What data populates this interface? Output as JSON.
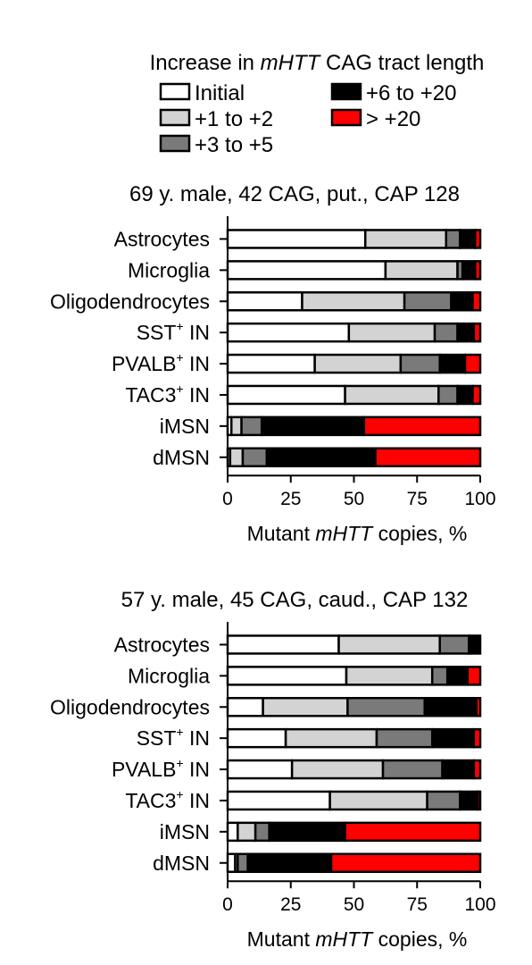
{
  "legend": {
    "title_pre": "Increase in ",
    "title_gene": "mHTT",
    "title_post": " CAG tract length",
    "items": [
      {
        "label": "Initial",
        "color": "#ffffff"
      },
      {
        "label": "+6 to +20",
        "color": "#000000"
      },
      {
        "label": "+1 to +2",
        "color": "#d3d3d3"
      },
      {
        "label": "> +20",
        "color": "#ff0000"
      },
      {
        "label": "+3 to +5",
        "color": "#7a7a7a"
      }
    ]
  },
  "chart_data": [
    {
      "type": "bar",
      "orientation": "horizontal",
      "stacked": true,
      "title": "69 y. male, 42 CAG, put., CAP 128",
      "xlabel_pre": "Mutant ",
      "xlabel_gene": "mHTT",
      "xlabel_post": " copies, %",
      "xlim": [
        0,
        100
      ],
      "xticks": [
        "0",
        "25",
        "50",
        "75",
        "100"
      ],
      "categories": [
        {
          "name": "Astrocytes",
          "sup": ""
        },
        {
          "name": "Microglia",
          "sup": ""
        },
        {
          "name": "Oligodendrocytes",
          "sup": ""
        },
        {
          "name": "SST",
          "sup": "+",
          "suffix": " IN"
        },
        {
          "name": "PVALB",
          "sup": "+",
          "suffix": " IN"
        },
        {
          "name": "TAC3",
          "sup": "+",
          "suffix": " IN"
        },
        {
          "name": "iMSN",
          "sup": ""
        },
        {
          "name": "dMSN",
          "sup": ""
        }
      ],
      "series": [
        {
          "name": "Initial",
          "color": "#ffffff",
          "values": [
            54.5,
            62.5,
            29.5,
            48,
            34.5,
            46.5,
            1.5,
            1
          ]
        },
        {
          "name": "+1 to +2",
          "color": "#d3d3d3",
          "values": [
            32,
            28.5,
            40.5,
            34,
            34,
            37,
            4,
            5
          ]
        },
        {
          "name": "+3 to +5",
          "color": "#7a7a7a",
          "values": [
            5.5,
            2,
            18.5,
            9,
            15.5,
            7.5,
            8,
            9.5
          ]
        },
        {
          "name": "+6 to +20",
          "color": "#000000",
          "values": [
            6,
            5,
            8.5,
            6.5,
            10,
            6,
            40.5,
            43
          ]
        },
        {
          "name": "> +20",
          "color": "#ff0000",
          "values": [
            2,
            2,
            3,
            2.5,
            6,
            3,
            46,
            41.5
          ]
        }
      ]
    },
    {
      "type": "bar",
      "orientation": "horizontal",
      "stacked": true,
      "title": "57 y. male, 45 CAG, caud., CAP 132",
      "xlabel_pre": "Mutant ",
      "xlabel_gene": "mHTT",
      "xlabel_post": " copies, %",
      "xlim": [
        0,
        100
      ],
      "xticks": [
        "0",
        "25",
        "50",
        "75",
        "100"
      ],
      "categories": [
        {
          "name": "Astrocytes",
          "sup": ""
        },
        {
          "name": "Microglia",
          "sup": ""
        },
        {
          "name": "Oligodendrocytes",
          "sup": ""
        },
        {
          "name": "SST",
          "sup": "+",
          "suffix": " IN"
        },
        {
          "name": "PVALB",
          "sup": "+",
          "suffix": " IN"
        },
        {
          "name": "TAC3",
          "sup": "+",
          "suffix": " IN"
        },
        {
          "name": "iMSN",
          "sup": ""
        },
        {
          "name": "dMSN",
          "sup": ""
        }
      ],
      "series": [
        {
          "name": "Initial",
          "color": "#ffffff",
          "values": [
            44,
            47,
            14,
            23,
            25.5,
            40.5,
            4,
            3
          ]
        },
        {
          "name": "+1 to +2",
          "color": "#d3d3d3",
          "values": [
            40,
            34,
            33.5,
            36,
            36,
            38.5,
            7,
            1
          ]
        },
        {
          "name": "+3 to +5",
          "color": "#7a7a7a",
          "values": [
            11.5,
            6,
            30.5,
            22,
            23.5,
            13,
            5.5,
            4
          ]
        },
        {
          "name": "+6 to +20",
          "color": "#000000",
          "values": [
            4.5,
            8,
            20.5,
            16.5,
            12.5,
            7,
            30,
            33
          ]
        },
        {
          "name": "> +20",
          "color": "#ff0000",
          "values": [
            0,
            5,
            1.5,
            2.5,
            2.5,
            1,
            53.5,
            59
          ]
        }
      ]
    }
  ]
}
